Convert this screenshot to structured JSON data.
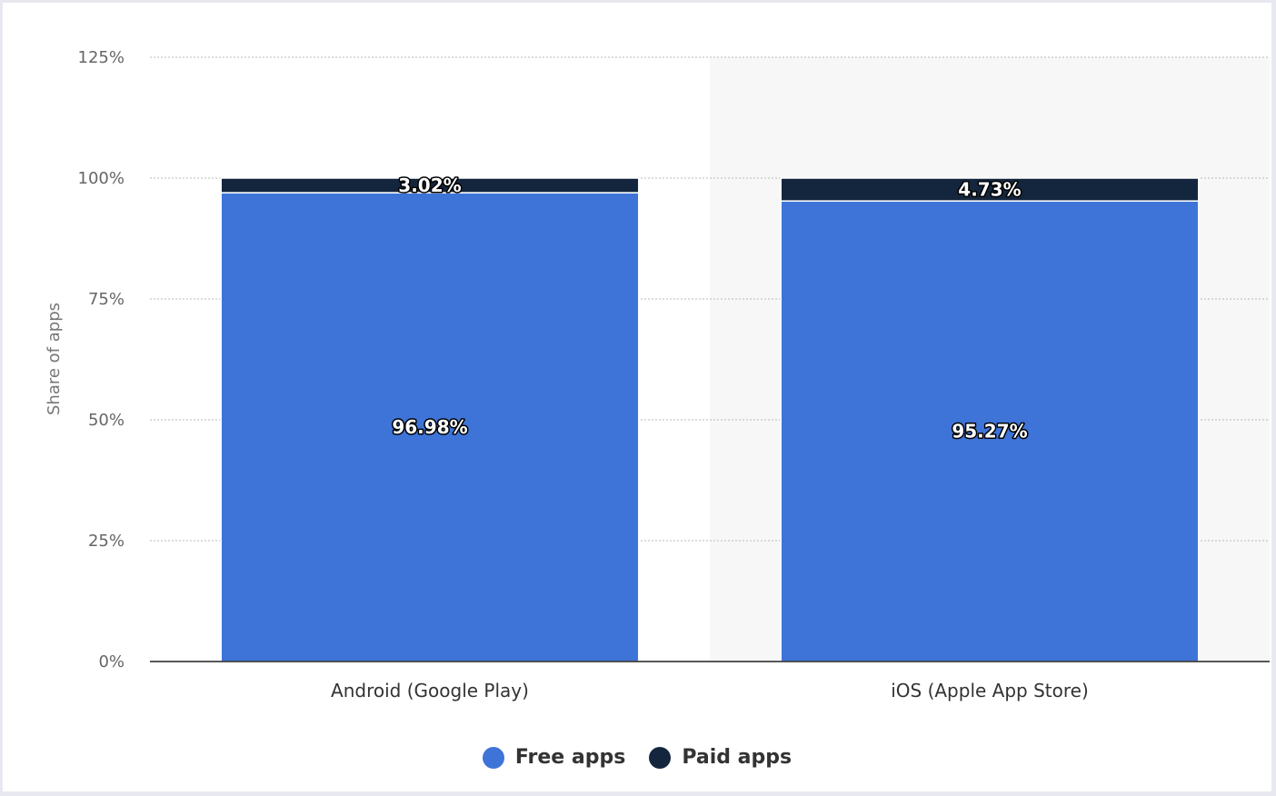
{
  "chart_data": {
    "type": "bar",
    "stacked": true,
    "categories": [
      "Android (Google Play)",
      "iOS (Apple App Store)"
    ],
    "series": [
      {
        "name": "Free apps",
        "values": [
          96.98,
          95.27
        ],
        "labels": [
          "96.98%",
          "95.27%"
        ],
        "color": "#3e74d8"
      },
      {
        "name": "Paid apps",
        "values": [
          3.02,
          4.73
        ],
        "labels": [
          "3.02%",
          "4.73%"
        ],
        "color": "#14263d"
      }
    ],
    "ylabel": "Share of apps",
    "xlabel": "",
    "ylim": [
      0,
      125
    ],
    "yticks": [
      0,
      25,
      50,
      75,
      100,
      125
    ],
    "ytick_labels": [
      "0%",
      "25%",
      "50%",
      "75%",
      "100%",
      "125%"
    ],
    "grid": true,
    "legend_position": "bottom-center",
    "highlight_band_color": "#f7f7f7"
  },
  "legend": {
    "items": [
      {
        "label": "Free apps",
        "color": "#3e74d8"
      },
      {
        "label": "Paid apps",
        "color": "#14263d"
      }
    ]
  }
}
